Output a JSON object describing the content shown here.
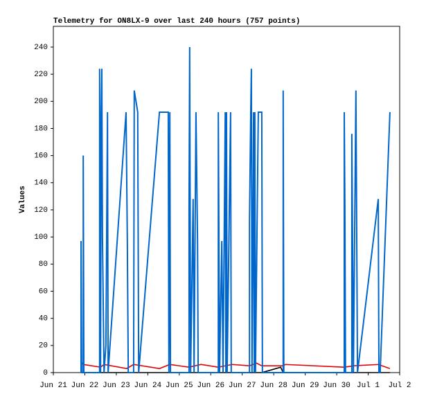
{
  "chart_data": {
    "type": "line",
    "title": "Telemetry for ON8LX-9 over last 240 hours (757 points)",
    "y_label": "Values",
    "xlim": [
      0,
      11
    ],
    "ylim": [
      0,
      255.3
    ],
    "xticks": [
      {
        "value": 0,
        "label": "Jun 21"
      },
      {
        "value": 1,
        "label": "Jun 22"
      },
      {
        "value": 2,
        "label": "Jun 23"
      },
      {
        "value": 3,
        "label": "Jun 24"
      },
      {
        "value": 4,
        "label": "Jun 25"
      },
      {
        "value": 5,
        "label": "Jun 26"
      },
      {
        "value": 6,
        "label": "Jun 27"
      },
      {
        "value": 7,
        "label": "Jun 28"
      },
      {
        "value": 8,
        "label": "Jun 29"
      },
      {
        "value": 9,
        "label": "Jun 30"
      },
      {
        "value": 10,
        "label": "Jul 1"
      },
      {
        "value": 11,
        "label": "Jul 2"
      }
    ],
    "yticks": [
      0,
      20,
      40,
      60,
      80,
      100,
      120,
      140,
      160,
      180,
      200,
      220,
      240
    ],
    "series": [
      {
        "color": "#0066cc",
        "x": [
          0.88,
          0.88,
          0.9,
          0.95,
          0.95,
          0.97,
          1.47,
          1.47,
          1.5,
          1.52,
          1.54,
          1.56,
          1.61,
          1.67,
          1.72,
          1.74,
          2.31,
          2.35,
          2.38,
          2.55,
          2.57,
          2.68,
          2.71,
          3.37,
          3.65,
          3.67,
          3.7,
          3.72,
          4.31,
          4.31,
          4.33,
          4.36,
          4.44,
          4.47,
          4.53,
          4.58,
          4.6,
          5.24,
          5.24,
          5.28,
          5.35,
          5.39,
          5.46,
          5.48,
          5.5,
          5.52,
          5.63,
          5.65,
          6.23,
          6.23,
          6.27,
          6.29,
          6.31,
          6.36,
          6.38,
          6.4,
          6.42,
          6.51,
          6.62,
          6.64,
          7.3,
          7.3,
          7.32,
          9.24,
          9.24,
          9.26,
          9.28,
          9.48,
          9.48,
          9.53,
          9.61,
          9.66,
          10.32,
          10.34,
          10.38,
          10.69
        ],
        "values": [
          0,
          97,
          0,
          0,
          160,
          0,
          0,
          224,
          0,
          192,
          224,
          100,
          0,
          20,
          192,
          0,
          192,
          97,
          0,
          0,
          208,
          192,
          0,
          192,
          192,
          0,
          192,
          0,
          0,
          120,
          240,
          0,
          128,
          0,
          192,
          97,
          0,
          0,
          192,
          0,
          97,
          0,
          192,
          0,
          192,
          0,
          192,
          0,
          0,
          112,
          192,
          224,
          0,
          192,
          0,
          192,
          0,
          192,
          192,
          0,
          0,
          208,
          0,
          0,
          192,
          120,
          0,
          0,
          176,
          0,
          208,
          0,
          128,
          0,
          0,
          192
        ]
      },
      {
        "color": "#e00000",
        "x": [
          0.88,
          0.95,
          1.5,
          1.61,
          2.33,
          2.55,
          3.37,
          3.7,
          4.31,
          4.69,
          5.24,
          5.68,
          6.23,
          6.45,
          6.62,
          7.3,
          7.37,
          9.24,
          9.53,
          10.32,
          10.69
        ],
        "values": [
          8,
          6,
          4,
          6,
          3,
          6,
          3,
          6,
          4,
          6,
          4,
          6,
          5,
          7,
          5,
          5,
          6,
          4,
          5,
          6,
          3
        ]
      },
      {
        "color": "#000000",
        "x": [
          0.88,
          6.62,
          7.22,
          7.3,
          10.69
        ],
        "values": [
          0,
          0,
          4,
          0,
          0
        ]
      }
    ]
  }
}
